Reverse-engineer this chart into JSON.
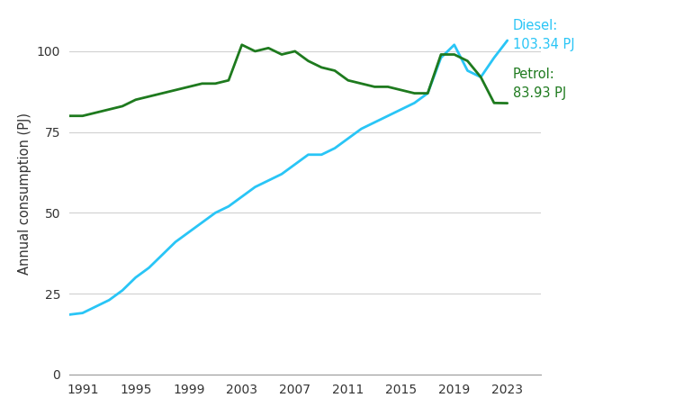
{
  "years": [
    1990,
    1991,
    1992,
    1993,
    1994,
    1995,
    1996,
    1997,
    1998,
    1999,
    2000,
    2001,
    2002,
    2003,
    2004,
    2005,
    2006,
    2007,
    2008,
    2009,
    2010,
    2011,
    2012,
    2013,
    2014,
    2015,
    2016,
    2017,
    2018,
    2019,
    2020,
    2021,
    2022,
    2023
  ],
  "diesel": [
    18.5,
    19,
    21,
    23,
    26,
    30,
    33,
    37,
    41,
    44,
    47,
    50,
    52,
    55,
    58,
    60,
    62,
    65,
    68,
    68,
    70,
    73,
    76,
    78,
    80,
    82,
    84,
    87,
    98,
    102,
    94,
    92,
    98,
    103.34
  ],
  "petrol": [
    80,
    80,
    81,
    82,
    83,
    85,
    86,
    87,
    88,
    89,
    90,
    90,
    91,
    102,
    100,
    101,
    99,
    100,
    97,
    95,
    94,
    91,
    90,
    89,
    89,
    88,
    87,
    87,
    99,
    99,
    97,
    92,
    84,
    83.93
  ],
  "diesel_color": "#29C5F6",
  "petrol_color": "#1e7a1e",
  "background_color": "#ffffff",
  "ylabel": "Annual consumption (PJ)",
  "ylim": [
    0,
    112
  ],
  "yticks": [
    0,
    25,
    50,
    75,
    100
  ],
  "xticks": [
    1991,
    1995,
    1999,
    2003,
    2007,
    2011,
    2015,
    2019,
    2023
  ],
  "xlim": [
    1990,
    2025.5
  ],
  "diesel_label": "Diesel:",
  "diesel_value": "103.34 PJ",
  "petrol_label": "Petrol:",
  "petrol_value": "83.93 PJ",
  "line_width": 2.0,
  "grid_color": "#d0d0d0",
  "annotation_fontsize": 10.5
}
